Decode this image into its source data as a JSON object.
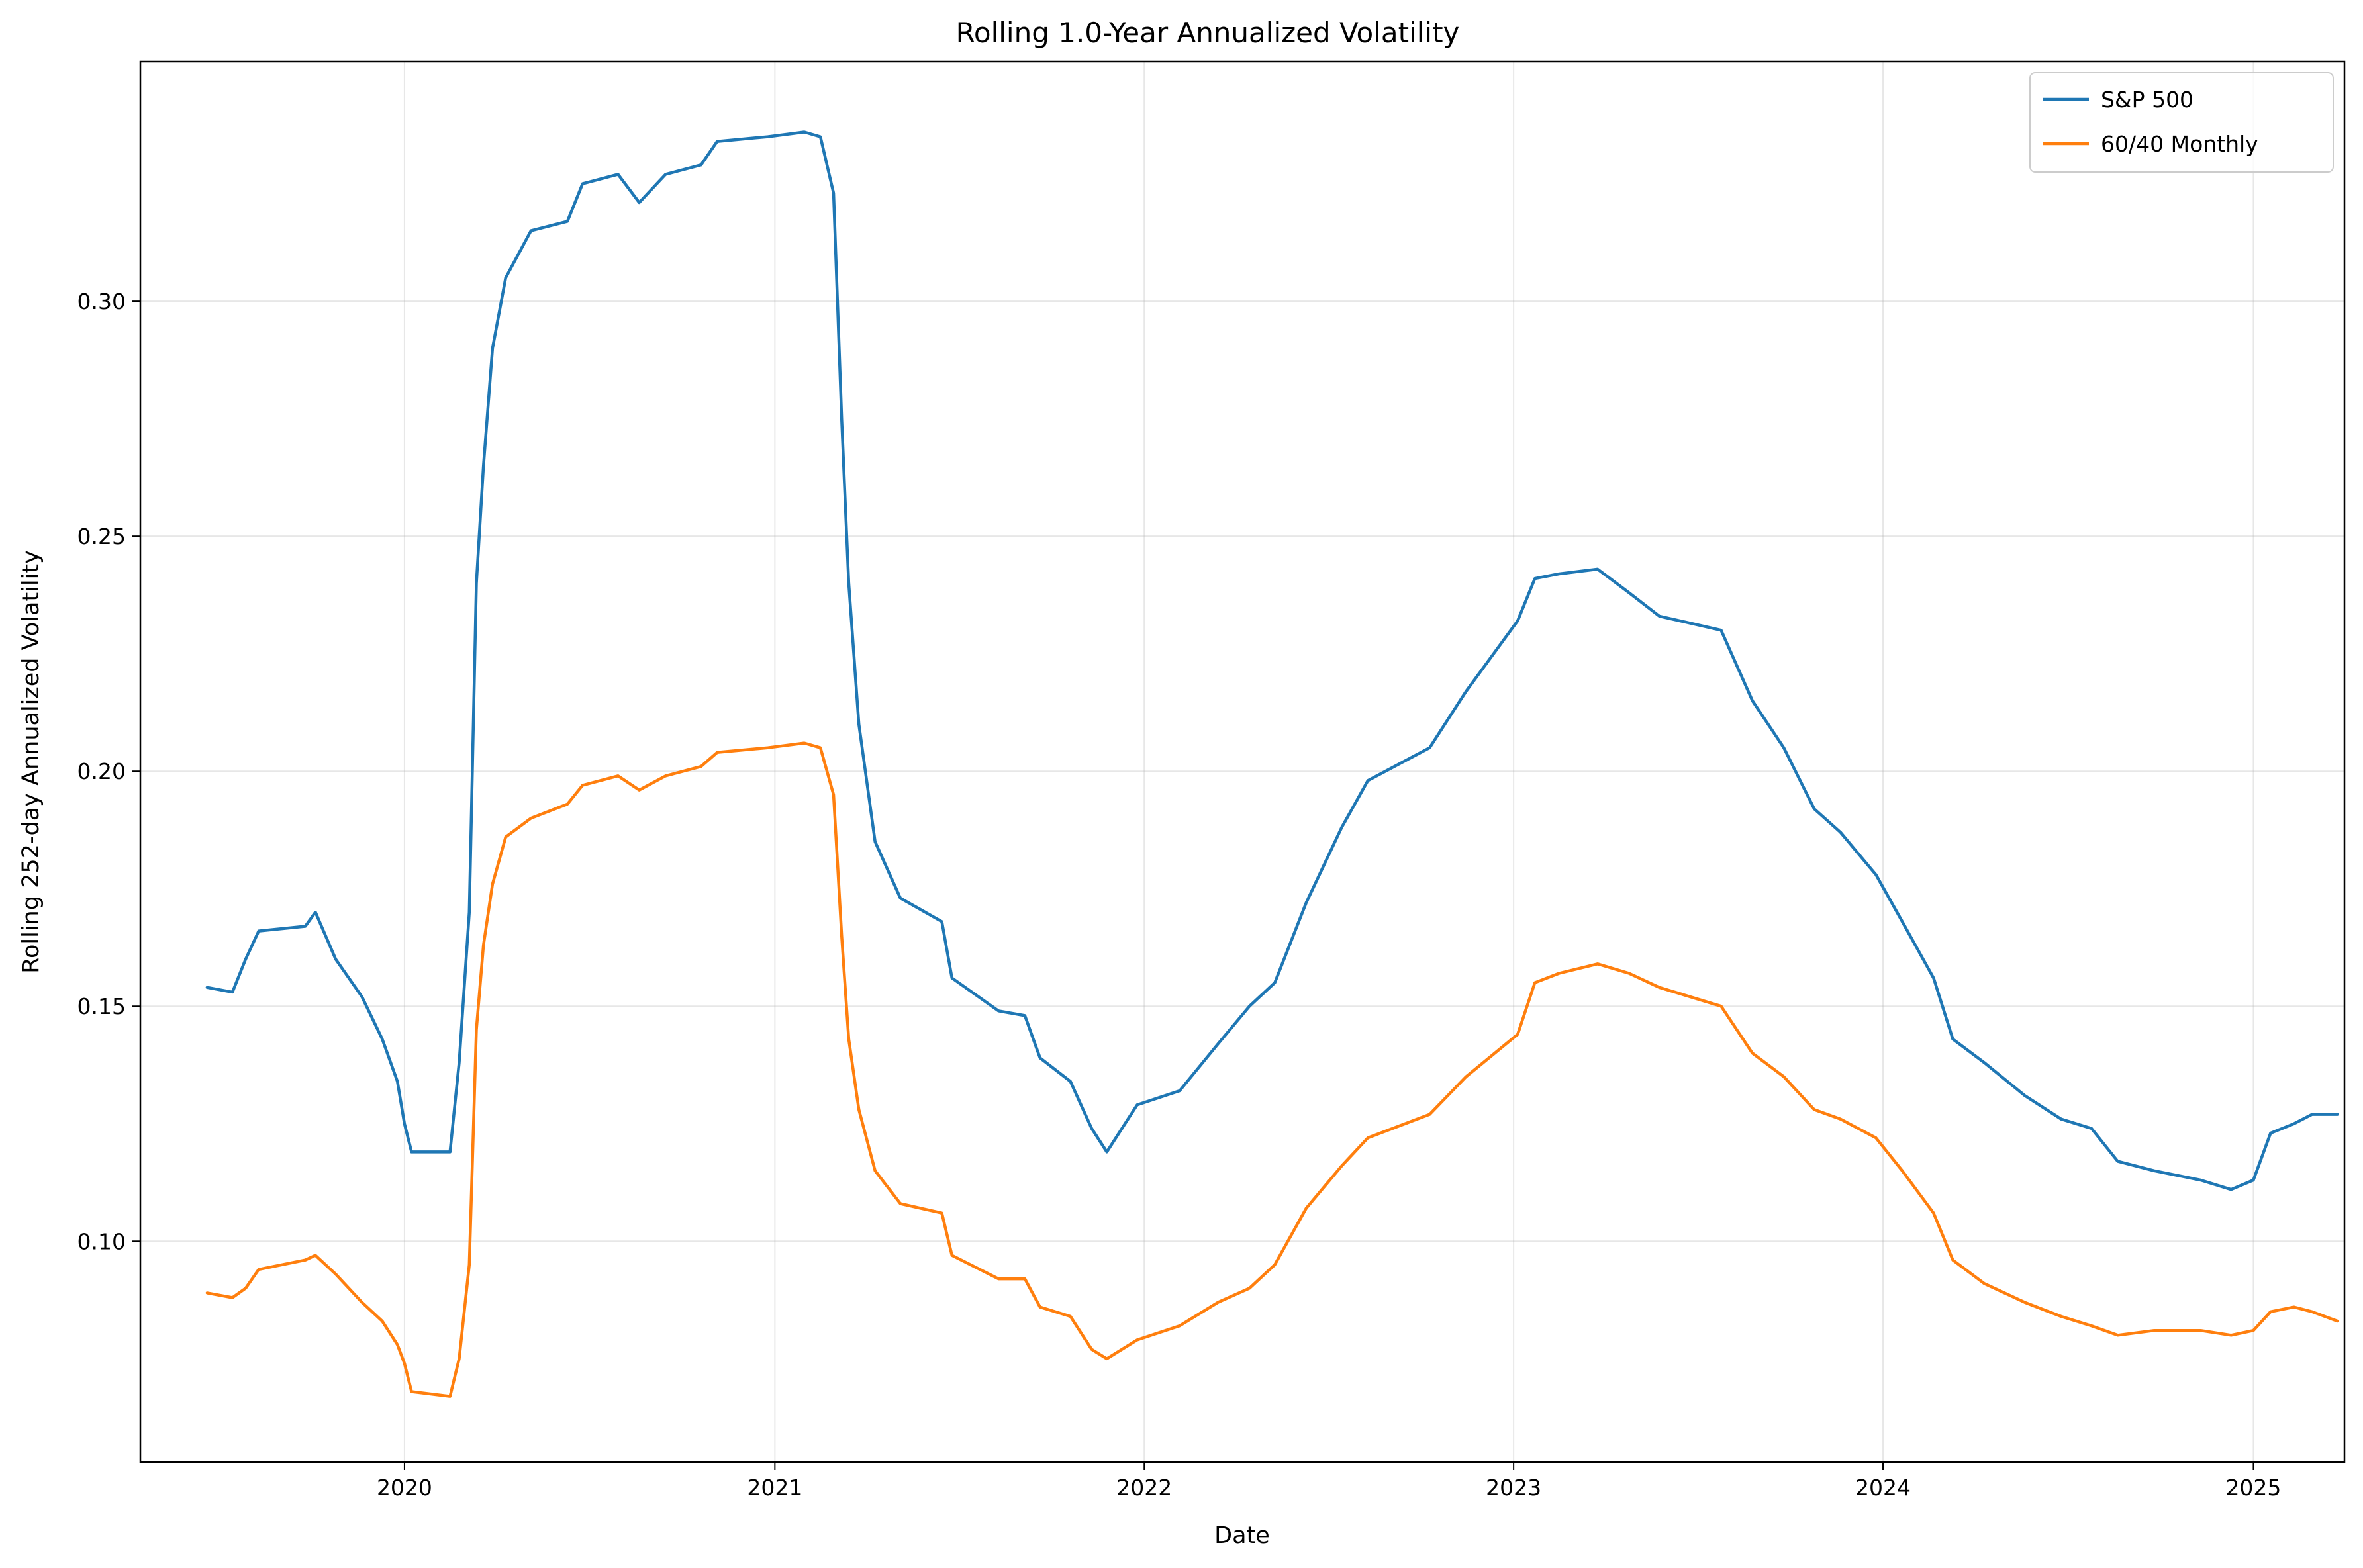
{
  "chart_data": {
    "type": "line",
    "title": "Rolling 1.0-Year Annualized Volatility",
    "xlabel": "Date",
    "ylabel": "Rolling 252-day Annualized Volatility",
    "xlim": [
      "2019-04-15",
      "2025-04-01"
    ],
    "ylim": [
      0.053,
      0.351
    ],
    "x_ticks": [
      "2020",
      "2021",
      "2022",
      "2023",
      "2024",
      "2025"
    ],
    "y_ticks": [
      "0.10",
      "0.15",
      "0.20",
      "0.25",
      "0.30"
    ],
    "grid": true,
    "legend_position": "top-right",
    "series": [
      {
        "name": "S&P 500",
        "color": "#1f77b4",
        "points": [
          [
            "2019-06-20",
            0.154
          ],
          [
            "2019-07-15",
            0.153
          ],
          [
            "2019-07-28",
            0.16
          ],
          [
            "2019-08-10",
            0.166
          ],
          [
            "2019-09-25",
            0.167
          ],
          [
            "2019-10-05",
            0.17
          ],
          [
            "2019-10-25",
            0.16
          ],
          [
            "2019-11-20",
            0.152
          ],
          [
            "2019-12-10",
            0.143
          ],
          [
            "2019-12-25",
            0.134
          ],
          [
            "2020-01-01",
            0.125
          ],
          [
            "2020-01-08",
            0.119
          ],
          [
            "2020-02-15",
            0.119
          ],
          [
            "2020-02-24",
            0.138
          ],
          [
            "2020-03-05",
            0.17
          ],
          [
            "2020-03-12",
            0.24
          ],
          [
            "2020-03-19",
            0.265
          ],
          [
            "2020-03-28",
            0.29
          ],
          [
            "2020-04-10",
            0.305
          ],
          [
            "2020-05-05",
            0.315
          ],
          [
            "2020-06-10",
            0.317
          ],
          [
            "2020-06-25",
            0.325
          ],
          [
            "2020-07-30",
            0.327
          ],
          [
            "2020-08-20",
            0.321
          ],
          [
            "2020-09-15",
            0.327
          ],
          [
            "2020-10-20",
            0.329
          ],
          [
            "2020-11-05",
            0.334
          ],
          [
            "2020-12-25",
            0.335
          ],
          [
            "2021-01-30",
            0.336
          ],
          [
            "2021-02-15",
            0.335
          ],
          [
            "2021-02-28",
            0.323
          ],
          [
            "2021-03-08",
            0.275
          ],
          [
            "2021-03-15",
            0.24
          ],
          [
            "2021-03-25",
            0.21
          ],
          [
            "2021-04-10",
            0.185
          ],
          [
            "2021-05-05",
            0.173
          ],
          [
            "2021-06-15",
            0.168
          ],
          [
            "2021-06-25",
            0.156
          ],
          [
            "2021-08-10",
            0.149
          ],
          [
            "2021-09-05",
            0.148
          ],
          [
            "2021-09-20",
            0.139
          ],
          [
            "2021-10-20",
            0.134
          ],
          [
            "2021-11-10",
            0.124
          ],
          [
            "2021-11-25",
            0.119
          ],
          [
            "2021-12-25",
            0.129
          ],
          [
            "2022-02-05",
            0.132
          ],
          [
            "2022-03-15",
            0.142
          ],
          [
            "2022-04-15",
            0.15
          ],
          [
            "2022-05-10",
            0.155
          ],
          [
            "2022-06-10",
            0.172
          ],
          [
            "2022-07-15",
            0.188
          ],
          [
            "2022-08-10",
            0.198
          ],
          [
            "2022-10-10",
            0.205
          ],
          [
            "2022-11-15",
            0.217
          ],
          [
            "2023-01-05",
            0.232
          ],
          [
            "2023-01-22",
            0.241
          ],
          [
            "2023-02-15",
            0.242
          ],
          [
            "2023-03-25",
            0.243
          ],
          [
            "2023-04-25",
            0.238
          ],
          [
            "2023-05-25",
            0.233
          ],
          [
            "2023-07-25",
            0.23
          ],
          [
            "2023-08-25",
            0.215
          ],
          [
            "2023-09-25",
            0.205
          ],
          [
            "2023-10-25",
            0.192
          ],
          [
            "2023-11-20",
            0.187
          ],
          [
            "2023-12-25",
            0.178
          ],
          [
            "2024-01-20",
            0.168
          ],
          [
            "2024-02-20",
            0.156
          ],
          [
            "2024-03-10",
            0.143
          ],
          [
            "2024-04-10",
            0.138
          ],
          [
            "2024-05-20",
            0.131
          ],
          [
            "2024-06-25",
            0.126
          ],
          [
            "2024-07-25",
            0.124
          ],
          [
            "2024-08-20",
            0.117
          ],
          [
            "2024-09-25",
            0.115
          ],
          [
            "2024-11-10",
            0.113
          ],
          [
            "2024-12-10",
            0.111
          ],
          [
            "2025-01-01",
            0.113
          ],
          [
            "2025-01-18",
            0.123
          ],
          [
            "2025-02-10",
            0.125
          ],
          [
            "2025-02-28",
            0.127
          ],
          [
            "2025-03-25",
            0.127
          ]
        ]
      },
      {
        "name": "60/40 Monthly",
        "color": "#ff7f0e",
        "points": [
          [
            "2019-06-20",
            0.089
          ],
          [
            "2019-07-15",
            0.088
          ],
          [
            "2019-07-28",
            0.09
          ],
          [
            "2019-08-10",
            0.094
          ],
          [
            "2019-09-25",
            0.096
          ],
          [
            "2019-10-05",
            0.097
          ],
          [
            "2019-10-25",
            0.093
          ],
          [
            "2019-11-20",
            0.087
          ],
          [
            "2019-12-10",
            0.083
          ],
          [
            "2019-12-25",
            0.078
          ],
          [
            "2020-01-01",
            0.074
          ],
          [
            "2020-01-08",
            0.068
          ],
          [
            "2020-02-15",
            0.067
          ],
          [
            "2020-02-24",
            0.075
          ],
          [
            "2020-03-05",
            0.095
          ],
          [
            "2020-03-12",
            0.145
          ],
          [
            "2020-03-19",
            0.163
          ],
          [
            "2020-03-28",
            0.176
          ],
          [
            "2020-04-10",
            0.186
          ],
          [
            "2020-05-05",
            0.19
          ],
          [
            "2020-06-10",
            0.193
          ],
          [
            "2020-06-25",
            0.197
          ],
          [
            "2020-07-30",
            0.199
          ],
          [
            "2020-08-20",
            0.196
          ],
          [
            "2020-09-15",
            0.199
          ],
          [
            "2020-10-20",
            0.201
          ],
          [
            "2020-11-05",
            0.204
          ],
          [
            "2020-12-25",
            0.205
          ],
          [
            "2021-01-30",
            0.206
          ],
          [
            "2021-02-15",
            0.205
          ],
          [
            "2021-02-28",
            0.195
          ],
          [
            "2021-03-08",
            0.165
          ],
          [
            "2021-03-15",
            0.143
          ],
          [
            "2021-03-25",
            0.128
          ],
          [
            "2021-04-10",
            0.115
          ],
          [
            "2021-05-05",
            0.108
          ],
          [
            "2021-06-15",
            0.106
          ],
          [
            "2021-06-25",
            0.097
          ],
          [
            "2021-08-10",
            0.092
          ],
          [
            "2021-09-05",
            0.092
          ],
          [
            "2021-09-20",
            0.086
          ],
          [
            "2021-10-20",
            0.084
          ],
          [
            "2021-11-10",
            0.077
          ],
          [
            "2021-11-25",
            0.075
          ],
          [
            "2021-12-25",
            0.079
          ],
          [
            "2022-02-05",
            0.082
          ],
          [
            "2022-03-15",
            0.087
          ],
          [
            "2022-04-15",
            0.09
          ],
          [
            "2022-05-10",
            0.095
          ],
          [
            "2022-06-10",
            0.107
          ],
          [
            "2022-07-15",
            0.116
          ],
          [
            "2022-08-10",
            0.122
          ],
          [
            "2022-10-10",
            0.127
          ],
          [
            "2022-11-15",
            0.135
          ],
          [
            "2023-01-05",
            0.144
          ],
          [
            "2023-01-22",
            0.155
          ],
          [
            "2023-02-15",
            0.157
          ],
          [
            "2023-03-25",
            0.159
          ],
          [
            "2023-04-25",
            0.157
          ],
          [
            "2023-05-25",
            0.154
          ],
          [
            "2023-07-25",
            0.15
          ],
          [
            "2023-08-25",
            0.14
          ],
          [
            "2023-09-25",
            0.135
          ],
          [
            "2023-10-25",
            0.128
          ],
          [
            "2023-11-20",
            0.126
          ],
          [
            "2023-12-25",
            0.122
          ],
          [
            "2024-01-20",
            0.115
          ],
          [
            "2024-02-20",
            0.106
          ],
          [
            "2024-03-10",
            0.096
          ],
          [
            "2024-04-10",
            0.091
          ],
          [
            "2024-05-20",
            0.087
          ],
          [
            "2024-06-25",
            0.084
          ],
          [
            "2024-07-25",
            0.082
          ],
          [
            "2024-08-20",
            0.08
          ],
          [
            "2024-09-25",
            0.081
          ],
          [
            "2024-11-10",
            0.081
          ],
          [
            "2024-12-10",
            0.08
          ],
          [
            "2025-01-01",
            0.081
          ],
          [
            "2025-01-18",
            0.085
          ],
          [
            "2025-02-10",
            0.086
          ],
          [
            "2025-02-28",
            0.085
          ],
          [
            "2025-03-25",
            0.083
          ]
        ]
      }
    ]
  }
}
